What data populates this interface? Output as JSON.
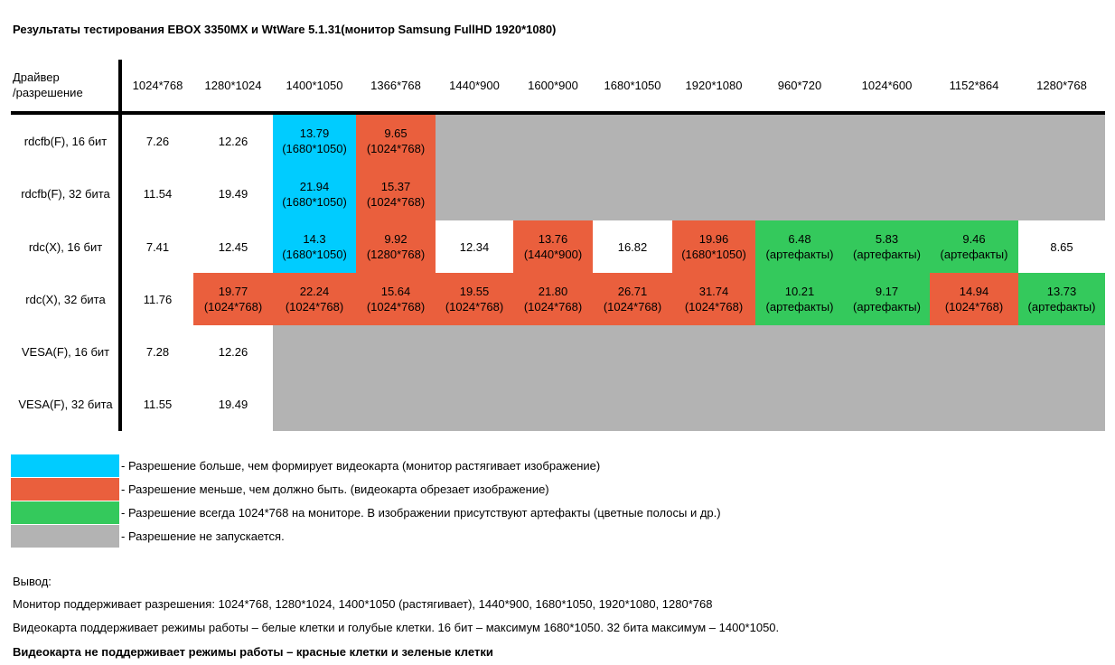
{
  "title": "Результаты тестирования EBOX 3350MX и WtWare 5.1.31(монитор Samsung FullHD 1920*1080)",
  "header": {
    "corner_line1": "Драйвер",
    "corner_line2": "/разрешение",
    "columns": [
      "1024*768",
      "1280*1024",
      "1400*1050",
      "1366*768",
      "1440*900",
      "1600*900",
      "1680*1050",
      "1920*1080",
      "960*720",
      "1024*600",
      "1152*864",
      "1280*768"
    ]
  },
  "rows": [
    {
      "label": "rdcfb(F), 16 бит",
      "cells": [
        {
          "value": "7.26",
          "note": "",
          "status": "white"
        },
        {
          "value": "12.26",
          "note": "",
          "status": "white"
        },
        {
          "value": "13.79",
          "note": "(1680*1050)",
          "status": "blue"
        },
        {
          "value": "9.65",
          "note": "(1024*768)",
          "status": "red"
        }
      ]
    },
    {
      "label": "rdcfb(F), 32 бита",
      "cells": [
        {
          "value": "11.54",
          "note": "",
          "status": "white"
        },
        {
          "value": "19.49",
          "note": "",
          "status": "white"
        },
        {
          "value": "21.94",
          "note": "(1680*1050)",
          "status": "blue"
        },
        {
          "value": "15.37",
          "note": "(1024*768)",
          "status": "red"
        }
      ]
    },
    {
      "label": "rdc(X), 16 бит",
      "cells": [
        {
          "value": "7.41",
          "note": "",
          "status": "white"
        },
        {
          "value": "12.45",
          "note": "",
          "status": "white"
        },
        {
          "value": "14.3",
          "note": "(1680*1050)",
          "status": "blue"
        },
        {
          "value": "9.92",
          "note": "(1280*768)",
          "status": "red"
        },
        {
          "value": "12.34",
          "note": "",
          "status": "white"
        },
        {
          "value": "13.76",
          "note": "(1440*900)",
          "status": "red"
        },
        {
          "value": "16.82",
          "note": "",
          "status": "white"
        },
        {
          "value": "19.96",
          "note": "(1680*1050)",
          "status": "red"
        },
        {
          "value": "6.48",
          "note": "(артефакты)",
          "status": "green"
        },
        {
          "value": "5.83",
          "note": "(артефакты)",
          "status": "green"
        },
        {
          "value": "9.46",
          "note": "(артефакты)",
          "status": "green"
        },
        {
          "value": "8.65",
          "note": "",
          "status": "white"
        }
      ]
    },
    {
      "label": "rdc(X), 32 бита",
      "cells": [
        {
          "value": "11.76",
          "note": "",
          "status": "white"
        },
        {
          "value": "19.77",
          "note": "(1024*768)",
          "status": "red"
        },
        {
          "value": "22.24",
          "note": "(1024*768)",
          "status": "red"
        },
        {
          "value": "15.64",
          "note": "(1024*768)",
          "status": "red"
        },
        {
          "value": "19.55",
          "note": "(1024*768)",
          "status": "red"
        },
        {
          "value": "21.80",
          "note": "(1024*768)",
          "status": "red"
        },
        {
          "value": "26.71",
          "note": "(1024*768)",
          "status": "red"
        },
        {
          "value": "31.74",
          "note": "(1024*768)",
          "status": "red"
        },
        {
          "value": "10.21",
          "note": "(артефакты)",
          "status": "green"
        },
        {
          "value": "9.17",
          "note": "(артефакты)",
          "status": "green"
        },
        {
          "value": "14.94",
          "note": "(1024*768)",
          "status": "red"
        },
        {
          "value": "13.73",
          "note": "(артефакты)",
          "status": "green"
        }
      ]
    },
    {
      "label": "VESA(F), 16 бит",
      "cells": [
        {
          "value": "7.28",
          "note": "",
          "status": "white"
        },
        {
          "value": "12.26",
          "note": "",
          "status": "white"
        }
      ]
    },
    {
      "label": "VESA(F), 32 бита",
      "cells": [
        {
          "value": "11.55",
          "note": "",
          "status": "white"
        },
        {
          "value": "19.49",
          "note": "",
          "status": "white"
        }
      ]
    }
  ],
  "legend": [
    {
      "status": "blue",
      "text": "- Разрешение больше, чем формирует видеокарта (монитор растягивает изображение)"
    },
    {
      "status": "red",
      "text": "- Разрешение меньше, чем должно быть. (видеокарта обрезает изображение)"
    },
    {
      "status": "green",
      "text": "- Разрешение всегда 1024*768 на мониторе. В изображении присутствуют артефакты (цветные полосы и др.)"
    },
    {
      "status": "gray",
      "text": "- Разрешение не запускается."
    }
  ],
  "conclusion": {
    "heading": "Вывод:",
    "line1": "Монитор поддерживает разрешения: 1024*768, 1280*1024, 1400*1050 (растягивает), 1440*900, 1680*1050, 1920*1080, 1280*768",
    "line2": "Видеокарта поддерживает режимы работы – белые клетки и голубые клетки. 16 бит – максимум 1680*1050. 32 бита максимум – 1400*1050.",
    "line3": "Видеокарта не поддерживает режимы работы – красные клетки и зеленые клетки"
  },
  "colors": {
    "blue": "#00ccff",
    "red": "#ea5f3d",
    "green": "#34c95c",
    "gray": "#b3b3b3",
    "white": "#ffffff"
  }
}
